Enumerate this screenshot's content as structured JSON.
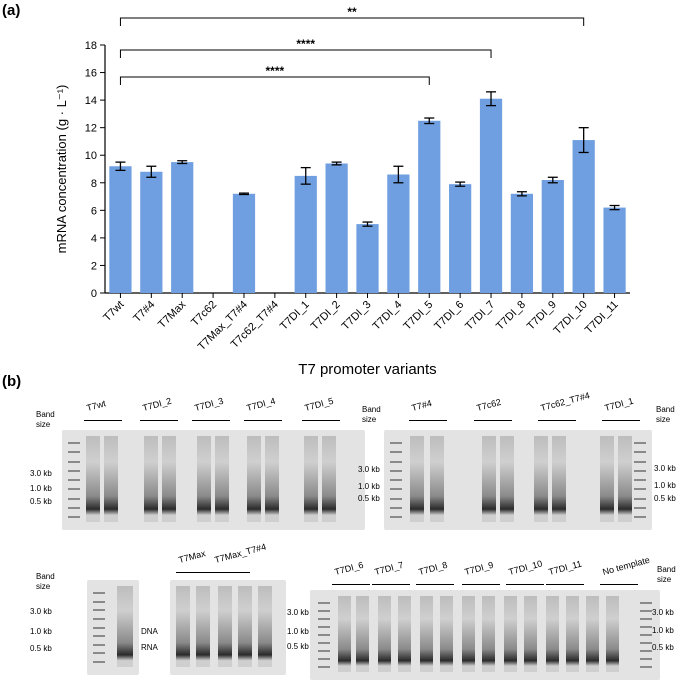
{
  "panel_a": "(a)",
  "panel_b": "(b)",
  "chart_data": {
    "type": "bar",
    "xlabel": "T7 promoter variants",
    "ylabel": "mRNA concentration (g · L⁻¹)",
    "ylim": [
      0,
      18
    ],
    "yticks": [
      0,
      2,
      4,
      6,
      8,
      10,
      12,
      14,
      16,
      18
    ],
    "bar_color": "#6f9fe0",
    "categories": [
      "T7wt",
      "T7#4",
      "T7Max",
      "T7c62",
      "T7Max_T7#4",
      "T7c62_T7#4",
      "T7DI_1",
      "T7DI_2",
      "T7DI_3",
      "T7DI_4",
      "T7DI_5",
      "T7DI_6",
      "T7DI_7",
      "T7DI_8",
      "T7DI_9",
      "T7DI_10",
      "T7DI_11"
    ],
    "values": [
      9.2,
      8.8,
      9.5,
      0,
      7.2,
      0,
      8.5,
      9.4,
      5.0,
      8.6,
      12.5,
      7.9,
      14.1,
      7.2,
      8.2,
      11.1,
      6.2
    ],
    "errors": [
      0.3,
      0.4,
      0.1,
      0,
      0.05,
      0,
      0.6,
      0.1,
      0.15,
      0.6,
      0.2,
      0.15,
      0.5,
      0.15,
      0.2,
      0.9,
      0.15
    ],
    "significance": [
      {
        "from": "T7wt",
        "to": "T7DI_10",
        "label": "**"
      },
      {
        "from": "T7wt",
        "to": "T7DI_7",
        "label": "****"
      },
      {
        "from": "T7wt",
        "to": "T7DI_5",
        "label": "****"
      }
    ]
  },
  "gels": {
    "band_size_label": "Band size",
    "kb_labels": [
      "3.0 kb",
      "1.0 kb",
      "0.5 kb"
    ],
    "gel1_labels": [
      "T7wt",
      "T7DI_2",
      "T7DI_3",
      "T7DI_4",
      "T7DI_5"
    ],
    "gel2_labels": [
      "T7#4",
      "T7c62",
      "T7c62_T7#4",
      "T7DI_1"
    ],
    "gel4_labels": [
      "T7Max",
      "T7Max_T7#4"
    ],
    "gel5_labels": [
      "T7DI_6",
      "T7DI_7",
      "T7DI_8",
      "T7DI_9",
      "T7DI_10",
      "T7DI_11",
      "No template"
    ],
    "dna_label": "DNA",
    "rna_label": "RNA"
  }
}
